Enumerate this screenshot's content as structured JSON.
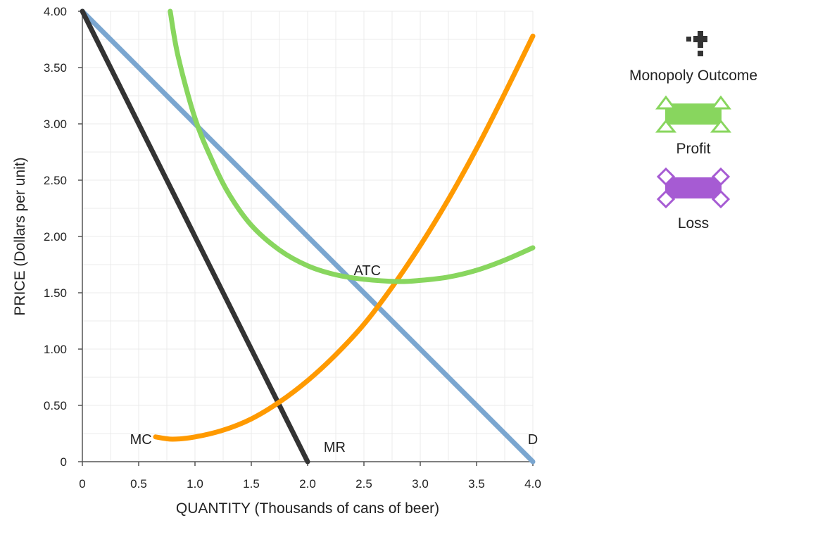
{
  "chart_data": {
    "type": "line",
    "xlabel": "QUANTITY (Thousands of cans of beer)",
    "ylabel": "PRICE (Dollars per unit)",
    "xlim": [
      0,
      4
    ],
    "ylim": [
      0,
      4
    ],
    "x_ticks": [
      "0",
      "0.5",
      "1.0",
      "1.5",
      "2.0",
      "2.5",
      "3.0",
      "3.5",
      "4.0"
    ],
    "y_ticks": [
      "0",
      "0.50",
      "1.00",
      "1.50",
      "2.00",
      "2.50",
      "3.00",
      "3.50",
      "4.00"
    ],
    "grid": true,
    "series": [
      {
        "name": "D",
        "color": "#7aa6d0",
        "x": [
          0,
          4
        ],
        "y": [
          4,
          0
        ]
      },
      {
        "name": "MR",
        "color": "#333333",
        "x": [
          0,
          2
        ],
        "y": [
          4,
          0
        ]
      },
      {
        "name": "MC",
        "color": "#ff9a00",
        "x": [
          0.65,
          0.8,
          1.0,
          1.25,
          1.5,
          1.75,
          2.0,
          2.25,
          2.5,
          2.75,
          3.0,
          3.25,
          3.5,
          3.75,
          4.0
        ],
        "y": [
          0.22,
          0.2,
          0.22,
          0.28,
          0.38,
          0.53,
          0.72,
          0.95,
          1.22,
          1.55,
          1.92,
          2.33,
          2.78,
          3.27,
          3.78
        ]
      },
      {
        "name": "ATC",
        "color": "#88d65e",
        "x": [
          0.78,
          0.85,
          1.0,
          1.15,
          1.3,
          1.5,
          1.75,
          2.0,
          2.25,
          2.5,
          2.8,
          3.0,
          3.25,
          3.5,
          3.75,
          4.0
        ],
        "y": [
          4.0,
          3.6,
          3.05,
          2.68,
          2.38,
          2.1,
          1.88,
          1.74,
          1.66,
          1.62,
          1.6,
          1.61,
          1.64,
          1.7,
          1.79,
          1.9
        ]
      }
    ],
    "annotations": [
      {
        "text": "D",
        "x": 4.0,
        "y": 0.2
      },
      {
        "text": "MR",
        "x": 2.24,
        "y": 0.13
      },
      {
        "text": "MC",
        "x": 0.52,
        "y": 0.2
      },
      {
        "text": "ATC",
        "x": 2.53,
        "y": 1.7
      }
    ]
  },
  "legend": {
    "items": [
      {
        "label": "Monopoly Outcome",
        "icon": "plus-cross-icon",
        "color": "#333333"
      },
      {
        "label": "Profit",
        "icon": "triangle-rect-icon",
        "color": "#88d65e"
      },
      {
        "label": "Loss",
        "icon": "diamond-rect-icon",
        "color": "#a65bd3"
      }
    ]
  }
}
